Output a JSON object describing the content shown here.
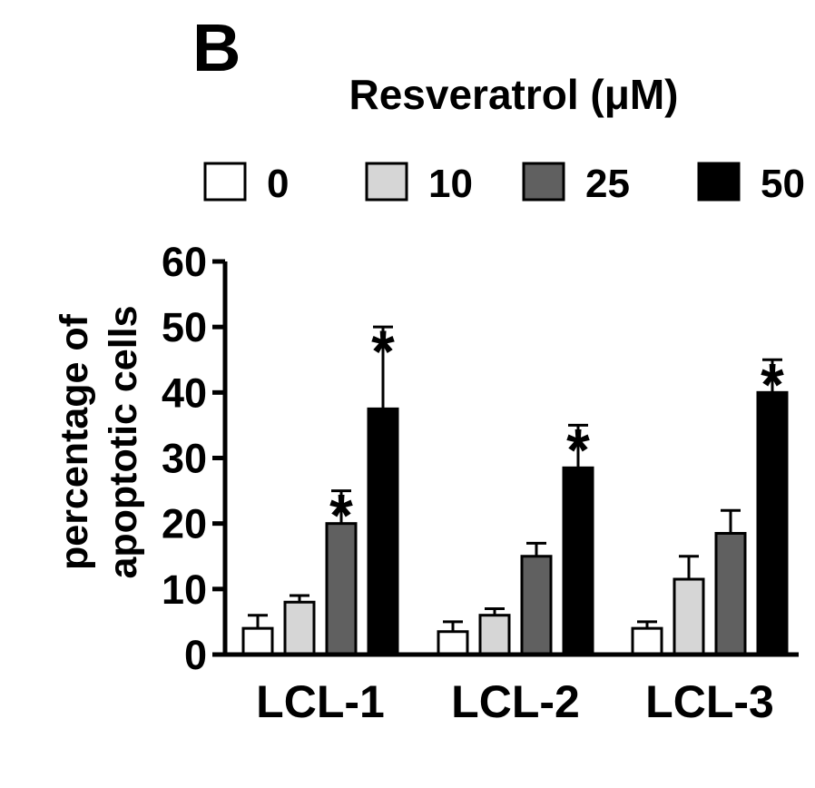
{
  "chart_data": {
    "type": "bar",
    "panel_label": "B",
    "title": "Resveratrol (μM)",
    "ylabel_line1": "percentage of",
    "ylabel_line2": "apoptotic cells",
    "xlabel": "",
    "ylim": [
      0,
      60
    ],
    "yticks": [
      "0",
      "10",
      "20",
      "30",
      "40",
      "50",
      "60"
    ],
    "categories": [
      "LCL-1",
      "LCL-2",
      "LCL-3"
    ],
    "series": [
      {
        "name": "0",
        "color": "#ffffff",
        "values": [
          4,
          3.5,
          4
        ],
        "errors": [
          2,
          1.5,
          1
        ],
        "significant": [
          false,
          false,
          false
        ]
      },
      {
        "name": "10",
        "color": "#d6d6d6",
        "values": [
          8,
          6,
          11.5
        ],
        "errors": [
          1,
          1,
          3.5
        ],
        "significant": [
          false,
          false,
          false
        ]
      },
      {
        "name": "25",
        "color": "#606060",
        "values": [
          20,
          15,
          18.5
        ],
        "errors": [
          5,
          2,
          3.5
        ],
        "significant": [
          true,
          false,
          false
        ]
      },
      {
        "name": "50",
        "color": "#000000",
        "values": [
          37.5,
          28.5,
          40
        ],
        "errors": [
          12.5,
          6.5,
          5
        ],
        "significant": [
          true,
          true,
          true
        ]
      }
    ],
    "significance_marker": "*",
    "legend_position": "top"
  }
}
